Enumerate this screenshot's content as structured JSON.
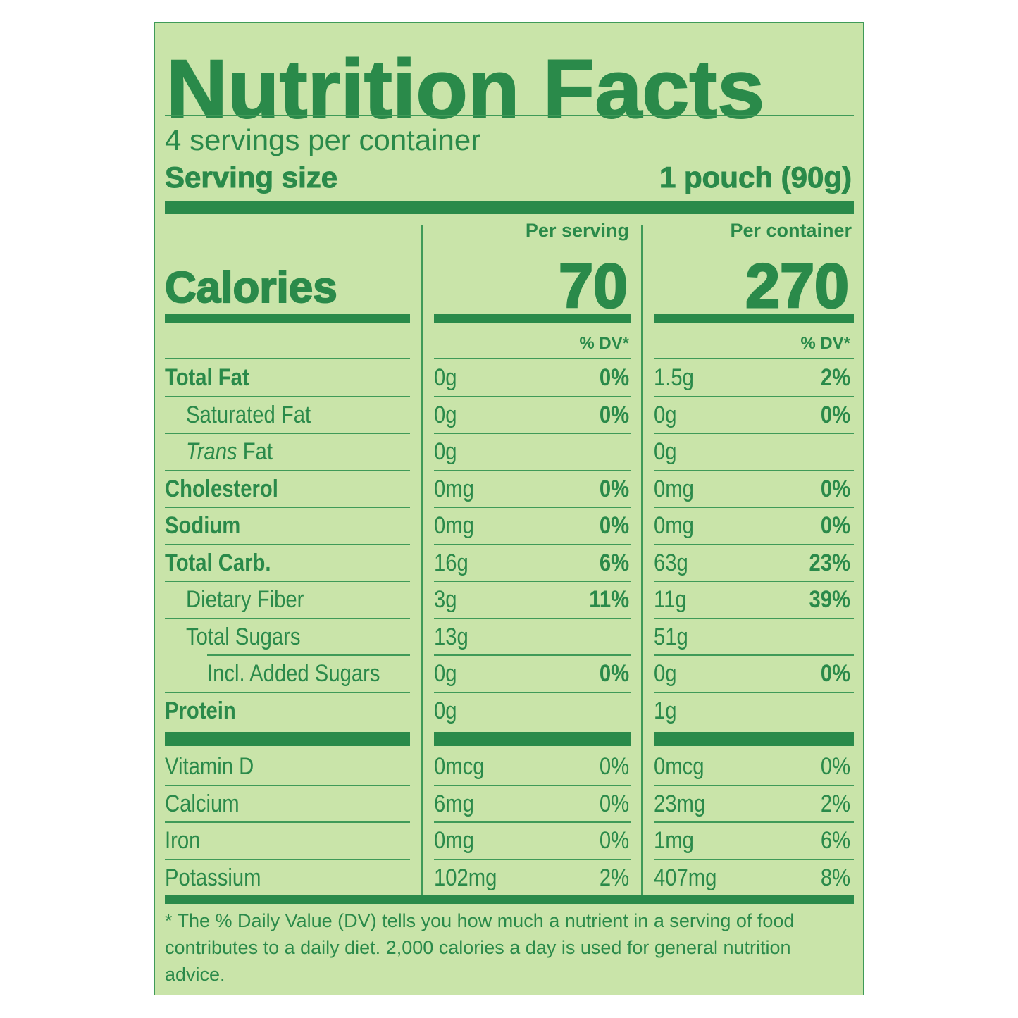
{
  "label": {
    "title": "Nutrition Facts",
    "servings_per_container": "4 servings per container",
    "serving_size_label": "Serving size",
    "serving_size_value": "1 pouch (90g)",
    "columns": {
      "per_serving": "Per serving",
      "per_container": "Per container"
    },
    "calories_label": "Calories",
    "calories_per_serving": "70",
    "calories_per_container": "270",
    "dv_header": "% DV*",
    "nutrients": [
      {
        "name": "Total Fat",
        "bold": true,
        "indent": 0,
        "serving_amount": "0g",
        "serving_dv": "0%",
        "container_amount": "1.5g",
        "container_dv": "2%"
      },
      {
        "name": "Saturated Fat",
        "bold": false,
        "indent": 1,
        "serving_amount": "0g",
        "serving_dv": "0%",
        "container_amount": "0g",
        "container_dv": "0%"
      },
      {
        "name_italic": "Trans",
        "name": " Fat",
        "bold": false,
        "indent": 1,
        "serving_amount": "0g",
        "serving_dv": "",
        "container_amount": "0g",
        "container_dv": ""
      },
      {
        "name": "Cholesterol",
        "bold": true,
        "indent": 0,
        "serving_amount": "0mg",
        "serving_dv": "0%",
        "container_amount": "0mg",
        "container_dv": "0%"
      },
      {
        "name": "Sodium",
        "bold": true,
        "indent": 0,
        "serving_amount": "0mg",
        "serving_dv": "0%",
        "container_amount": "0mg",
        "container_dv": "0%"
      },
      {
        "name": "Total Carb.",
        "bold": true,
        "indent": 0,
        "serving_amount": "16g",
        "serving_dv": "6%",
        "container_amount": "63g",
        "container_dv": "23%"
      },
      {
        "name": "Dietary Fiber",
        "bold": false,
        "indent": 1,
        "serving_amount": "3g",
        "serving_dv": "11%",
        "container_amount": "11g",
        "container_dv": "39%"
      },
      {
        "name": "Total Sugars",
        "bold": false,
        "indent": 1,
        "serving_amount": "13g",
        "serving_dv": "",
        "container_amount": "51g",
        "container_dv": ""
      },
      {
        "name": "Incl. Added Sugars",
        "bold": false,
        "indent": 2,
        "serving_amount": "0g",
        "serving_dv": "0%",
        "container_amount": "0g",
        "container_dv": "0%"
      },
      {
        "name": "Protein",
        "bold": true,
        "indent": 0,
        "serving_amount": "0g",
        "serving_dv": "",
        "container_amount": "1g",
        "container_dv": ""
      }
    ],
    "vitamins": [
      {
        "name": "Vitamin D",
        "serving_amount": "0mcg",
        "serving_dv": "0%",
        "container_amount": "0mcg",
        "container_dv": "0%"
      },
      {
        "name": "Calcium",
        "serving_amount": "6mg",
        "serving_dv": "0%",
        "container_amount": "23mg",
        "container_dv": "2%"
      },
      {
        "name": "Iron",
        "serving_amount": "0mg",
        "serving_dv": "0%",
        "container_amount": "1mg",
        "container_dv": "6%"
      },
      {
        "name": "Potassium",
        "serving_amount": "102mg",
        "serving_dv": "2%",
        "container_amount": "407mg",
        "container_dv": "8%"
      }
    ],
    "footnote": "* The % Daily Value (DV) tells you how much a nutrient in a serving of food contributes to a daily diet. 2,000 calories a day is used for general nutrition advice.",
    "colors": {
      "background": "#c9e4a9",
      "text": "#2a8a4a"
    }
  }
}
